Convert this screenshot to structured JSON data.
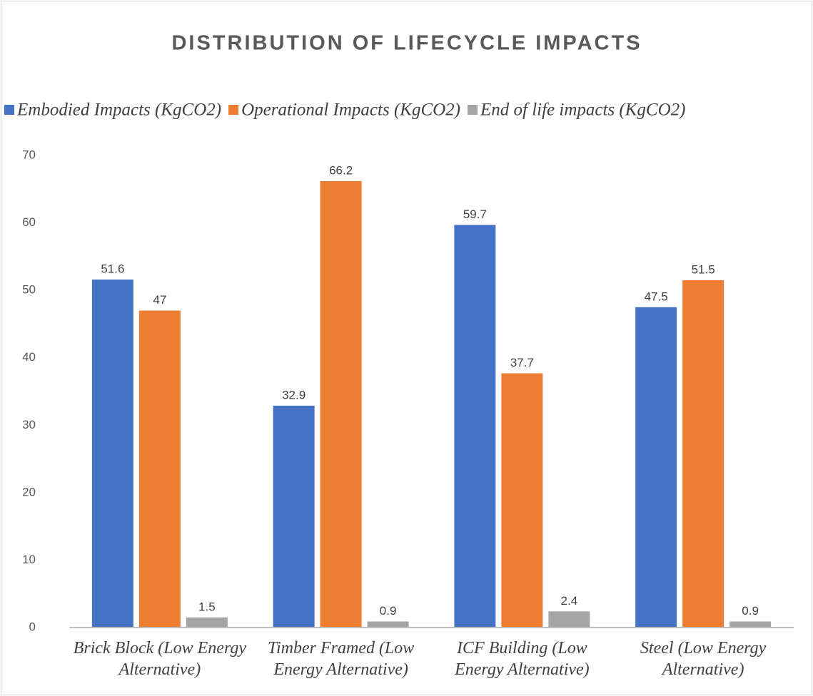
{
  "chart_data": {
    "type": "bar",
    "title": "DISTRIBUTION OF LIFECYCLE IMPACTS",
    "categories": [
      "Brick Block (Low Energy Alternative)",
      "Timber Framed (Low Energy Alternative)",
      "ICF Building (Low Energy Alternative)",
      "Steel (Low Energy Alternative)"
    ],
    "series": [
      {
        "name": "Embodied Impacts (KgCO2)",
        "color": "#4472c4",
        "values": [
          51.6,
          32.9,
          59.7,
          47.5
        ]
      },
      {
        "name": "Operational Impacts (KgCO2)",
        "color": "#ed7d31",
        "values": [
          47,
          66.2,
          37.7,
          51.5
        ]
      },
      {
        "name": "End of life impacts (KgCO2)",
        "color": "#a5a5a5",
        "values": [
          1.5,
          0.9,
          2.4,
          0.9
        ]
      }
    ],
    "ylim": [
      0,
      70
    ],
    "yticks": [
      0,
      10,
      20,
      30,
      40,
      50,
      60,
      70
    ],
    "legend": "top"
  }
}
